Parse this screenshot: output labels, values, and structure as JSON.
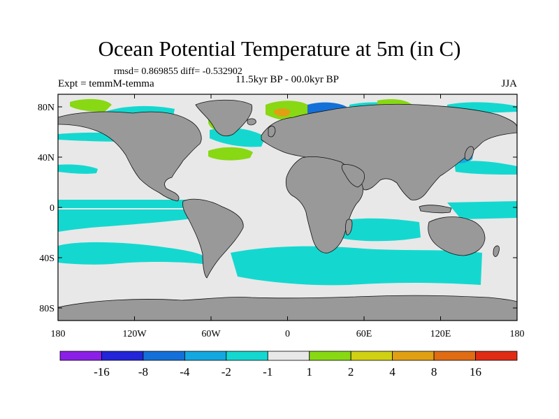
{
  "title": "Ocean Potential Temperature at 5m (in C)",
  "stats": "rmsd= 0.869855 diff= -0.532902",
  "experiment": "Expt = temmM-temma",
  "period": "11.5kyr BP - 00.0kyr BP",
  "season": "JJA",
  "map": {
    "projection": "cylindrical equidistant",
    "lon_range": [
      -180,
      180
    ],
    "lat_range": [
      -90,
      90
    ],
    "land_color": "#999999",
    "ocean_background_color": "#e8e8e8",
    "lat_ticks": [
      {
        "value": 80,
        "label": "80N"
      },
      {
        "value": 40,
        "label": "40N"
      },
      {
        "value": 0,
        "label": "0"
      },
      {
        "value": -40,
        "label": "40S"
      },
      {
        "value": -80,
        "label": "80S"
      }
    ],
    "lon_ticks": [
      {
        "value": -180,
        "label": "180"
      },
      {
        "value": -120,
        "label": "120W"
      },
      {
        "value": -60,
        "label": "60W"
      },
      {
        "value": 0,
        "label": "0"
      },
      {
        "value": 60,
        "label": "60E"
      },
      {
        "value": 120,
        "label": "120E"
      },
      {
        "value": 180,
        "label": "180"
      }
    ]
  },
  "colorbar": {
    "colors": [
      "#8a20e8",
      "#2424d8",
      "#1470d8",
      "#14a8e0",
      "#14d8d0",
      "#e8e8e8",
      "#88d814",
      "#d0d014",
      "#e0a014",
      "#e06c14",
      "#e02c14"
    ],
    "labels": [
      "-16",
      "-8",
      "-4",
      "-2",
      "-1",
      "1",
      "2",
      "4",
      "8",
      "16"
    ]
  }
}
